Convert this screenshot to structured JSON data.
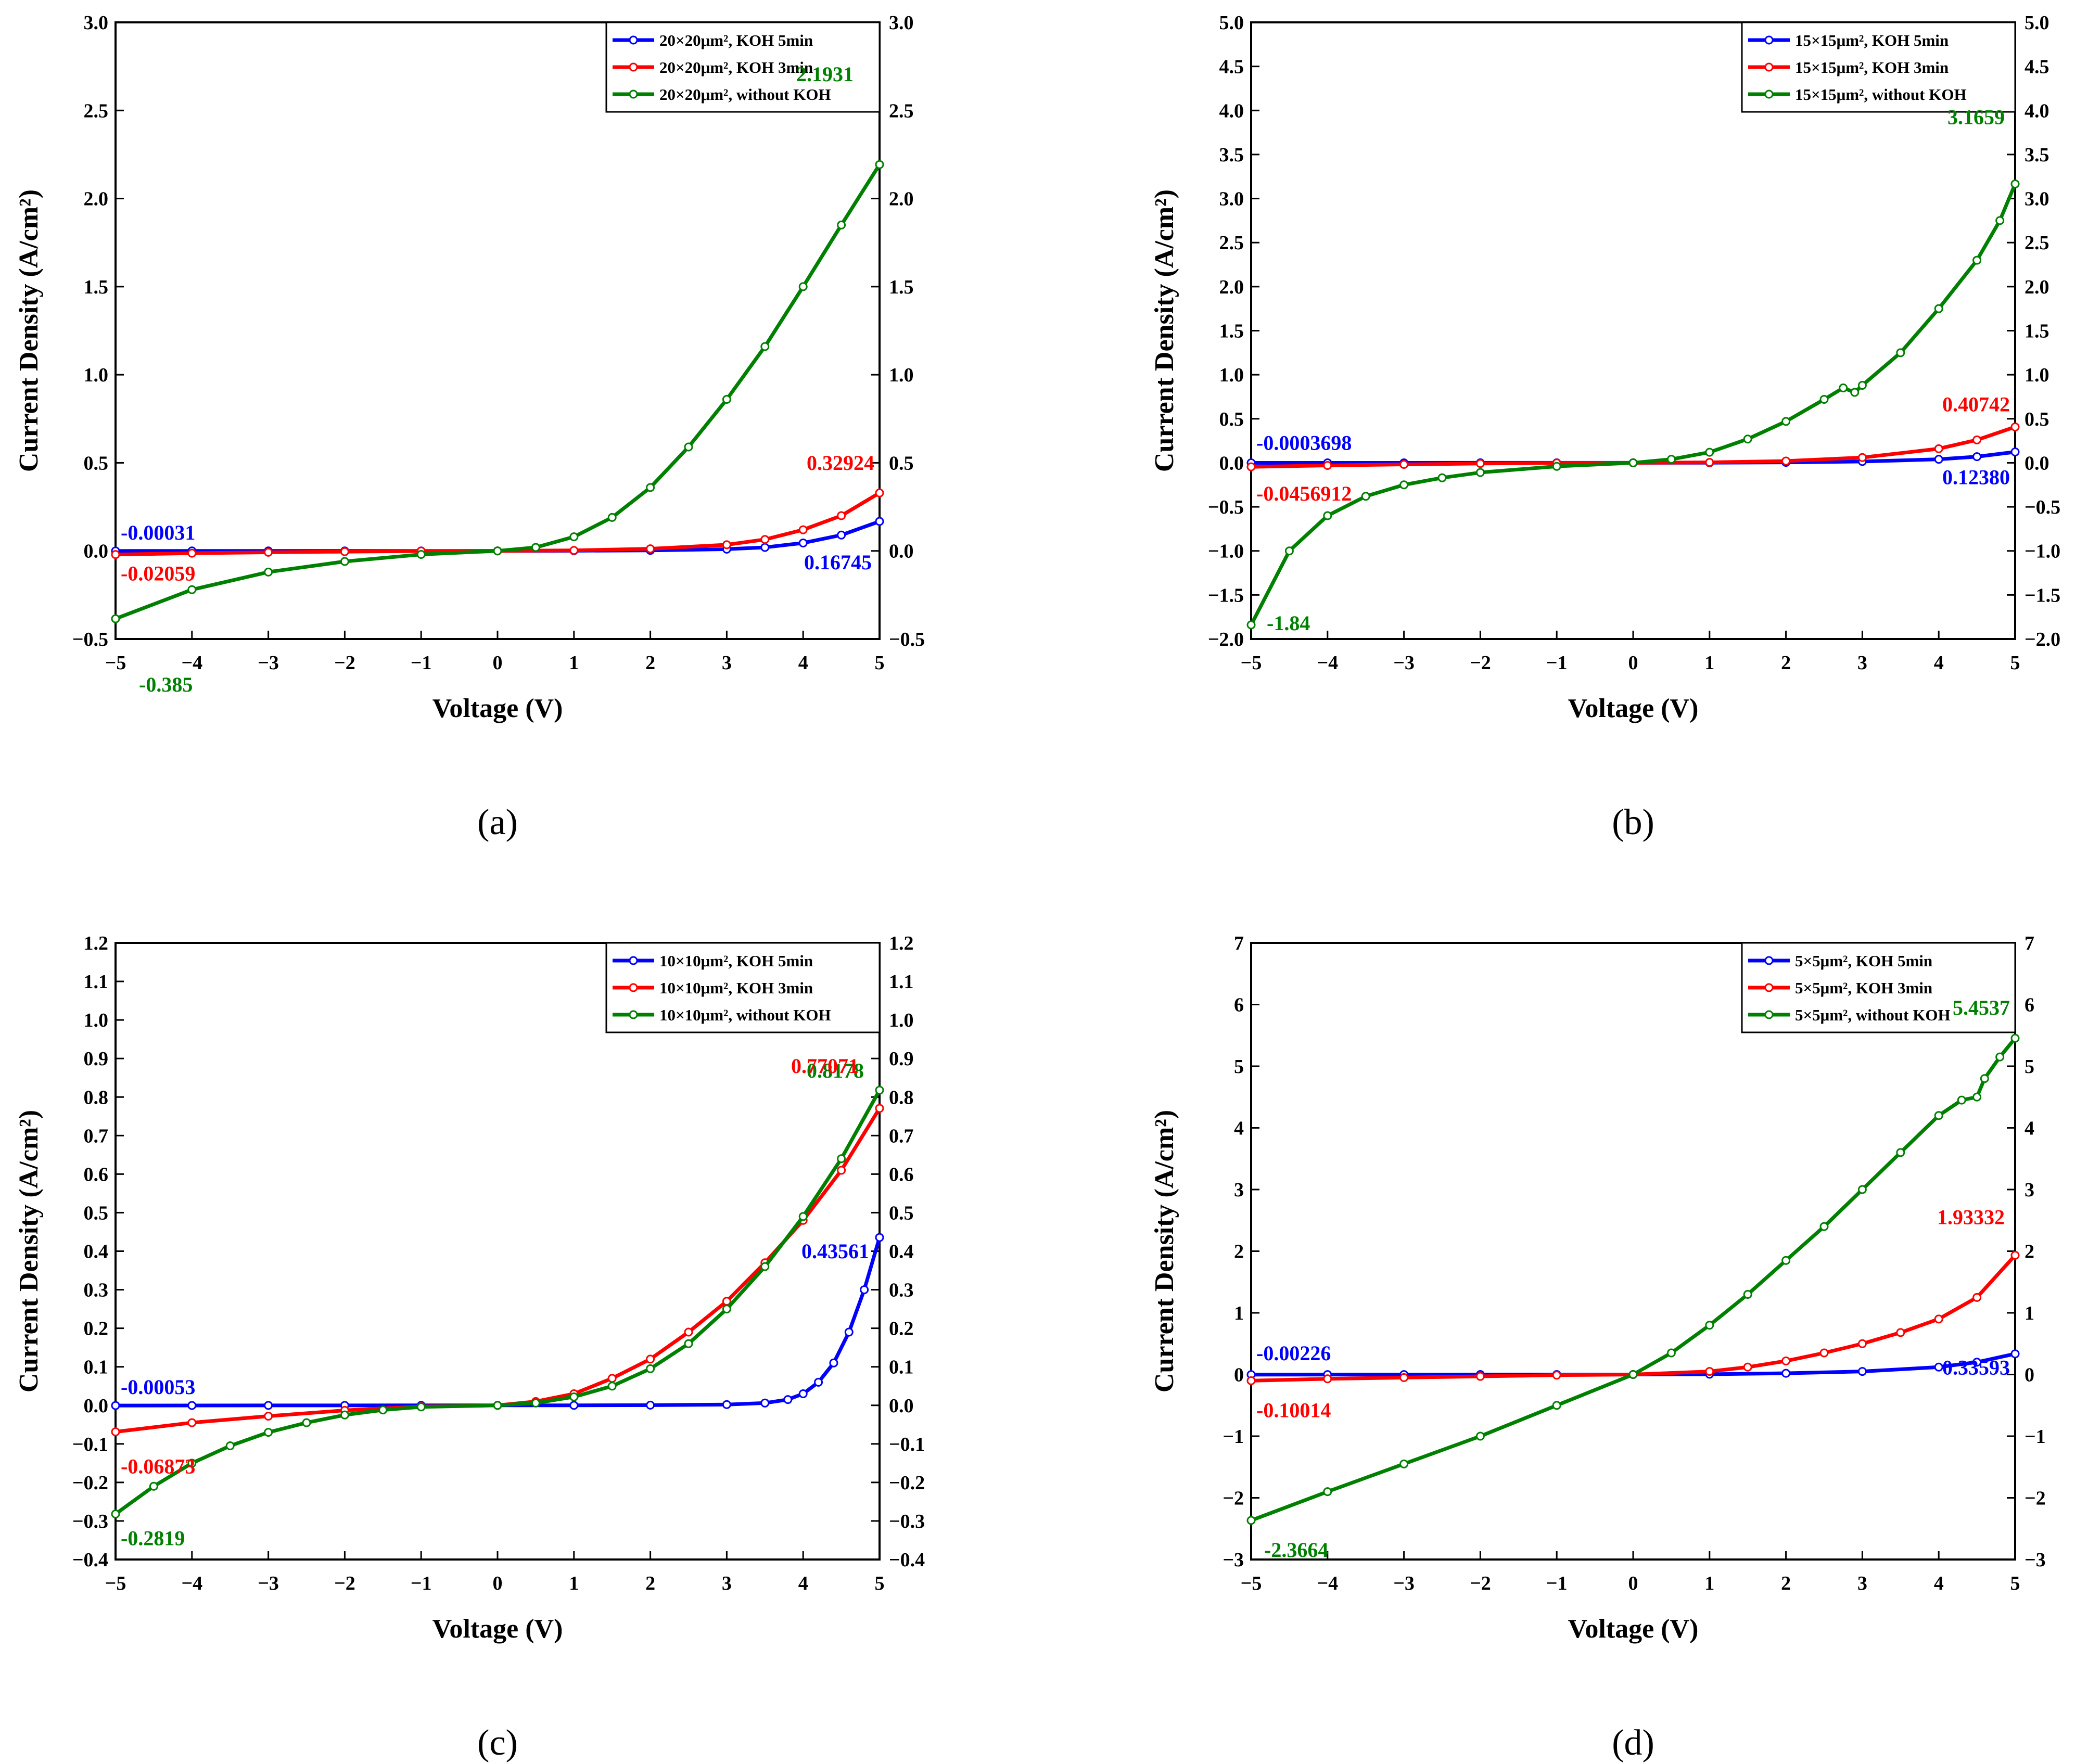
{
  "chart_data": [
    {
      "type": "line",
      "caption": "(a)",
      "xlabel": "Voltage (V)",
      "ylabel": "Current Density (A/cm²)",
      "xlim": [
        -5,
        5
      ],
      "ylim": [
        -0.5,
        3.0
      ],
      "xticks": [
        -5,
        -4,
        -3,
        -2,
        -1,
        0,
        1,
        2,
        3,
        4,
        5
      ],
      "yticks": [
        -0.5,
        0.0,
        0.5,
        1.0,
        1.5,
        2.0,
        2.5,
        3.0
      ],
      "ytick_decimals": 1,
      "legend_position": "top-right",
      "series": [
        {
          "name": "20×20μm², KOH 5min",
          "color": "#0000ff",
          "x": [
            -5,
            -4,
            -3,
            -2,
            -1,
            0,
            1,
            2,
            3,
            3.5,
            4,
            4.5,
            5
          ],
          "y": [
            -0.00031,
            -0.0002,
            -0.0001,
            0,
            0,
            0,
            0.001,
            0.003,
            0.01,
            0.02,
            0.045,
            0.09,
            0.16745
          ]
        },
        {
          "name": "20×20μm², KOH 3min",
          "color": "#ff0000",
          "x": [
            -5,
            -4,
            -3,
            -2,
            -1,
            0,
            1,
            2,
            3,
            3.5,
            4,
            4.5,
            5
          ],
          "y": [
            -0.02059,
            -0.013,
            -0.008,
            -0.004,
            -0.001,
            0,
            0.003,
            0.012,
            0.035,
            0.065,
            0.12,
            0.2,
            0.32924
          ]
        },
        {
          "name": "20×20μm², without KOH",
          "color": "#008000",
          "x": [
            -5,
            -4,
            -3,
            -2,
            -1,
            0,
            0.5,
            1,
            1.5,
            2,
            2.5,
            3,
            3.5,
            4,
            4.5,
            5
          ],
          "y": [
            -0.385,
            -0.22,
            -0.12,
            -0.06,
            -0.02,
            0,
            0.02,
            0.08,
            0.19,
            0.36,
            0.59,
            0.86,
            1.16,
            1.5,
            1.85,
            2.1931
          ]
        }
      ],
      "annotations": [
        {
          "text": "-0.00031",
          "x": -5,
          "y": -0.00031,
          "color": "#0000ff"
        },
        {
          "text": "-0.02059",
          "x": -5,
          "y": -0.02059,
          "color": "#ff0000"
        },
        {
          "text": "-0.385",
          "x": -5,
          "y": -0.385,
          "color": "#008000"
        },
        {
          "text": "2.1931",
          "x": 5,
          "y": 2.1931,
          "color": "#008000"
        },
        {
          "text": "0.32924",
          "x": 5,
          "y": 0.32924,
          "color": "#ff0000"
        },
        {
          "text": "0.16745",
          "x": 5,
          "y": 0.16745,
          "color": "#0000ff"
        }
      ]
    },
    {
      "type": "line",
      "caption": "(b)",
      "xlabel": "Voltage (V)",
      "ylabel": "Current Density (A/cm²)",
      "xlim": [
        -5,
        5
      ],
      "ylim": [
        -2.0,
        5.0
      ],
      "xticks": [
        -5,
        -4,
        -3,
        -2,
        -1,
        0,
        1,
        2,
        3,
        4,
        5
      ],
      "yticks": [
        -2.0,
        -1.5,
        -1.0,
        -0.5,
        0.0,
        0.5,
        1.0,
        1.5,
        2.0,
        2.5,
        3.0,
        3.5,
        4.0,
        4.5,
        5.0
      ],
      "ytick_decimals": 1,
      "legend_position": "top-right",
      "series": [
        {
          "name": "15×15μm², KOH 5min",
          "color": "#0000ff",
          "x": [
            -5,
            -4,
            -3,
            -2,
            -1,
            0,
            1,
            2,
            3,
            4,
            4.5,
            5
          ],
          "y": [
            -0.0003698,
            -0.0002,
            -0.0001,
            0,
            0,
            0,
            0.001,
            0.005,
            0.015,
            0.04,
            0.07,
            0.1238
          ]
        },
        {
          "name": "15×15μm², KOH 3min",
          "color": "#ff0000",
          "x": [
            -5,
            -4,
            -3,
            -2,
            -1,
            0,
            1,
            2,
            3,
            4,
            4.5,
            5
          ],
          "y": [
            -0.0456912,
            -0.03,
            -0.018,
            -0.008,
            -0.002,
            0,
            0.005,
            0.02,
            0.06,
            0.16,
            0.26,
            0.40742
          ]
        },
        {
          "name": "15×15μm², without KOH",
          "color": "#008000",
          "x": [
            -5,
            -4.5,
            -4,
            -3.5,
            -3,
            -2.5,
            -2,
            -1,
            0,
            0.5,
            1,
            1.5,
            2,
            2.5,
            2.75,
            2.9,
            3,
            3.5,
            4,
            4.5,
            4.8,
            5
          ],
          "y": [
            -1.84,
            -1.0,
            -0.6,
            -0.38,
            -0.25,
            -0.17,
            -0.11,
            -0.04,
            0,
            0.04,
            0.12,
            0.27,
            0.47,
            0.72,
            0.85,
            0.8,
            0.88,
            1.25,
            1.75,
            2.3,
            2.75,
            3.1659
          ]
        }
      ],
      "annotations": [
        {
          "text": "-0.0003698",
          "x": -5,
          "y": -0.0003698,
          "color": "#0000ff"
        },
        {
          "text": "-0.0456912",
          "x": -5,
          "y": -0.0456912,
          "color": "#ff0000"
        },
        {
          "text": "-1.84",
          "x": -5,
          "y": -1.84,
          "color": "#008000"
        },
        {
          "text": "3.1659",
          "x": 5,
          "y": 3.1659,
          "color": "#008000"
        },
        {
          "text": "0.40742",
          "x": 5,
          "y": 0.40742,
          "color": "#ff0000"
        },
        {
          "text": "0.12380",
          "x": 5,
          "y": 0.1238,
          "color": "#0000ff"
        }
      ]
    },
    {
      "type": "line",
      "caption": "(c)",
      "xlabel": "Voltage (V)",
      "ylabel": "Current Density (A/cm²)",
      "xlim": [
        -5,
        5
      ],
      "ylim": [
        -0.4,
        1.2
      ],
      "xticks": [
        -5,
        -4,
        -3,
        -2,
        -1,
        0,
        1,
        2,
        3,
        4,
        5
      ],
      "yticks": [
        -0.4,
        -0.3,
        -0.2,
        -0.1,
        0.0,
        0.1,
        0.2,
        0.3,
        0.4,
        0.5,
        0.6,
        0.7,
        0.8,
        0.9,
        1.0,
        1.1,
        1.2
      ],
      "ytick_decimals": 1,
      "legend_position": "top-right",
      "series": [
        {
          "name": "10×10μm², KOH 5min",
          "color": "#0000ff",
          "x": [
            -5,
            -4,
            -3,
            -2,
            -1,
            0,
            1,
            2,
            3,
            3.5,
            3.8,
            4,
            4.2,
            4.4,
            4.6,
            4.8,
            5
          ],
          "y": [
            -0.00053,
            -0.0003,
            -0.0002,
            -0.0001,
            0,
            0,
            0,
            0.0005,
            0.002,
            0.006,
            0.015,
            0.03,
            0.06,
            0.11,
            0.19,
            0.3,
            0.43561
          ]
        },
        {
          "name": "10×10μm², KOH 3min",
          "color": "#ff0000",
          "x": [
            -5,
            -4,
            -3,
            -2,
            -1,
            0,
            0.5,
            1,
            1.5,
            2,
            2.5,
            3,
            3.5,
            4,
            4.5,
            5
          ],
          "y": [
            -0.06873,
            -0.045,
            -0.028,
            -0.013,
            -0.003,
            0,
            0.01,
            0.03,
            0.07,
            0.12,
            0.19,
            0.27,
            0.37,
            0.48,
            0.61,
            0.77071
          ]
        },
        {
          "name": "10×10μm², without KOH",
          "color": "#008000",
          "x": [
            -5,
            -4.5,
            -4,
            -3.5,
            -3,
            -2.5,
            -2,
            -1.5,
            -1,
            0,
            0.5,
            1,
            1.5,
            2,
            2.5,
            3,
            3.5,
            4,
            4.5,
            5
          ],
          "y": [
            -0.2819,
            -0.21,
            -0.15,
            -0.105,
            -0.07,
            -0.045,
            -0.025,
            -0.012,
            -0.004,
            0,
            0.006,
            0.022,
            0.05,
            0.095,
            0.16,
            0.25,
            0.36,
            0.49,
            0.64,
            0.8178
          ]
        }
      ],
      "annotations": [
        {
          "text": "-0.00053",
          "x": -5,
          "y": -0.00053,
          "color": "#0000ff"
        },
        {
          "text": "-0.06873",
          "x": -5,
          "y": -0.06873,
          "color": "#ff0000"
        },
        {
          "text": "-0.2819",
          "x": -5,
          "y": -0.2819,
          "color": "#008000"
        },
        {
          "text": "0.8178",
          "x": 5,
          "y": 0.8178,
          "color": "#008000"
        },
        {
          "text": "0.77071",
          "x": 5,
          "y": 0.77071,
          "color": "#ff0000"
        },
        {
          "text": "0.43561",
          "x": 5,
          "y": 0.43561,
          "color": "#0000ff"
        }
      ]
    },
    {
      "type": "line",
      "caption": "(d)",
      "xlabel": "Voltage (V)",
      "ylabel": "Current Density (A/cm²)",
      "xlim": [
        -5,
        5
      ],
      "ylim": [
        -3,
        7
      ],
      "xticks": [
        -5,
        -4,
        -3,
        -2,
        -1,
        0,
        1,
        2,
        3,
        4,
        5
      ],
      "yticks": [
        -3,
        -2,
        -1,
        0,
        1,
        2,
        3,
        4,
        5,
        6,
        7
      ],
      "ytick_decimals": 0,
      "legend_position": "top-right",
      "series": [
        {
          "name": "5×5μm², KOH 5min",
          "color": "#0000ff",
          "x": [
            -5,
            -4,
            -3,
            -2,
            -1,
            0,
            1,
            2,
            3,
            4,
            4.5,
            5
          ],
          "y": [
            -0.00226,
            -0.0015,
            -0.001,
            -0.0005,
            0,
            0,
            0.005,
            0.02,
            0.05,
            0.12,
            0.2,
            0.33593
          ]
        },
        {
          "name": "5×5μm², KOH 3min",
          "color": "#ff0000",
          "x": [
            -5,
            -4,
            -3,
            -2,
            -1,
            0,
            1,
            1.5,
            2,
            2.5,
            3,
            3.5,
            4,
            4.5,
            5
          ],
          "y": [
            -0.10014,
            -0.07,
            -0.05,
            -0.03,
            -0.01,
            0,
            0.05,
            0.12,
            0.22,
            0.35,
            0.5,
            0.68,
            0.9,
            1.25,
            1.93332
          ]
        },
        {
          "name": "5×5μm², without KOH",
          "color": "#008000",
          "x": [
            -5,
            -4,
            -3,
            -2,
            -1,
            0,
            0.5,
            1,
            1.5,
            2,
            2.5,
            3,
            3.5,
            4,
            4.3,
            4.5,
            4.6,
            4.8,
            5
          ],
          "y": [
            -2.3664,
            -1.9,
            -1.45,
            -1.0,
            -0.5,
            0,
            0.35,
            0.8,
            1.3,
            1.85,
            2.4,
            3.0,
            3.6,
            4.2,
            4.45,
            4.5,
            4.8,
            5.15,
            5.4537
          ]
        }
      ],
      "annotations": [
        {
          "text": "-0.00226",
          "x": -5,
          "y": -0.00226,
          "color": "#0000ff"
        },
        {
          "text": "-0.10014",
          "x": -5,
          "y": -0.10014,
          "color": "#ff0000"
        },
        {
          "text": "-2.3664",
          "x": -5,
          "y": -2.3664,
          "color": "#008000"
        },
        {
          "text": "5.4537",
          "x": 5,
          "y": 5.4537,
          "color": "#008000"
        },
        {
          "text": "1.93332",
          "x": 5,
          "y": 1.93332,
          "color": "#ff0000"
        },
        {
          "text": "0.33593",
          "x": 5,
          "y": 0.33593,
          "color": "#0000ff"
        }
      ]
    }
  ]
}
